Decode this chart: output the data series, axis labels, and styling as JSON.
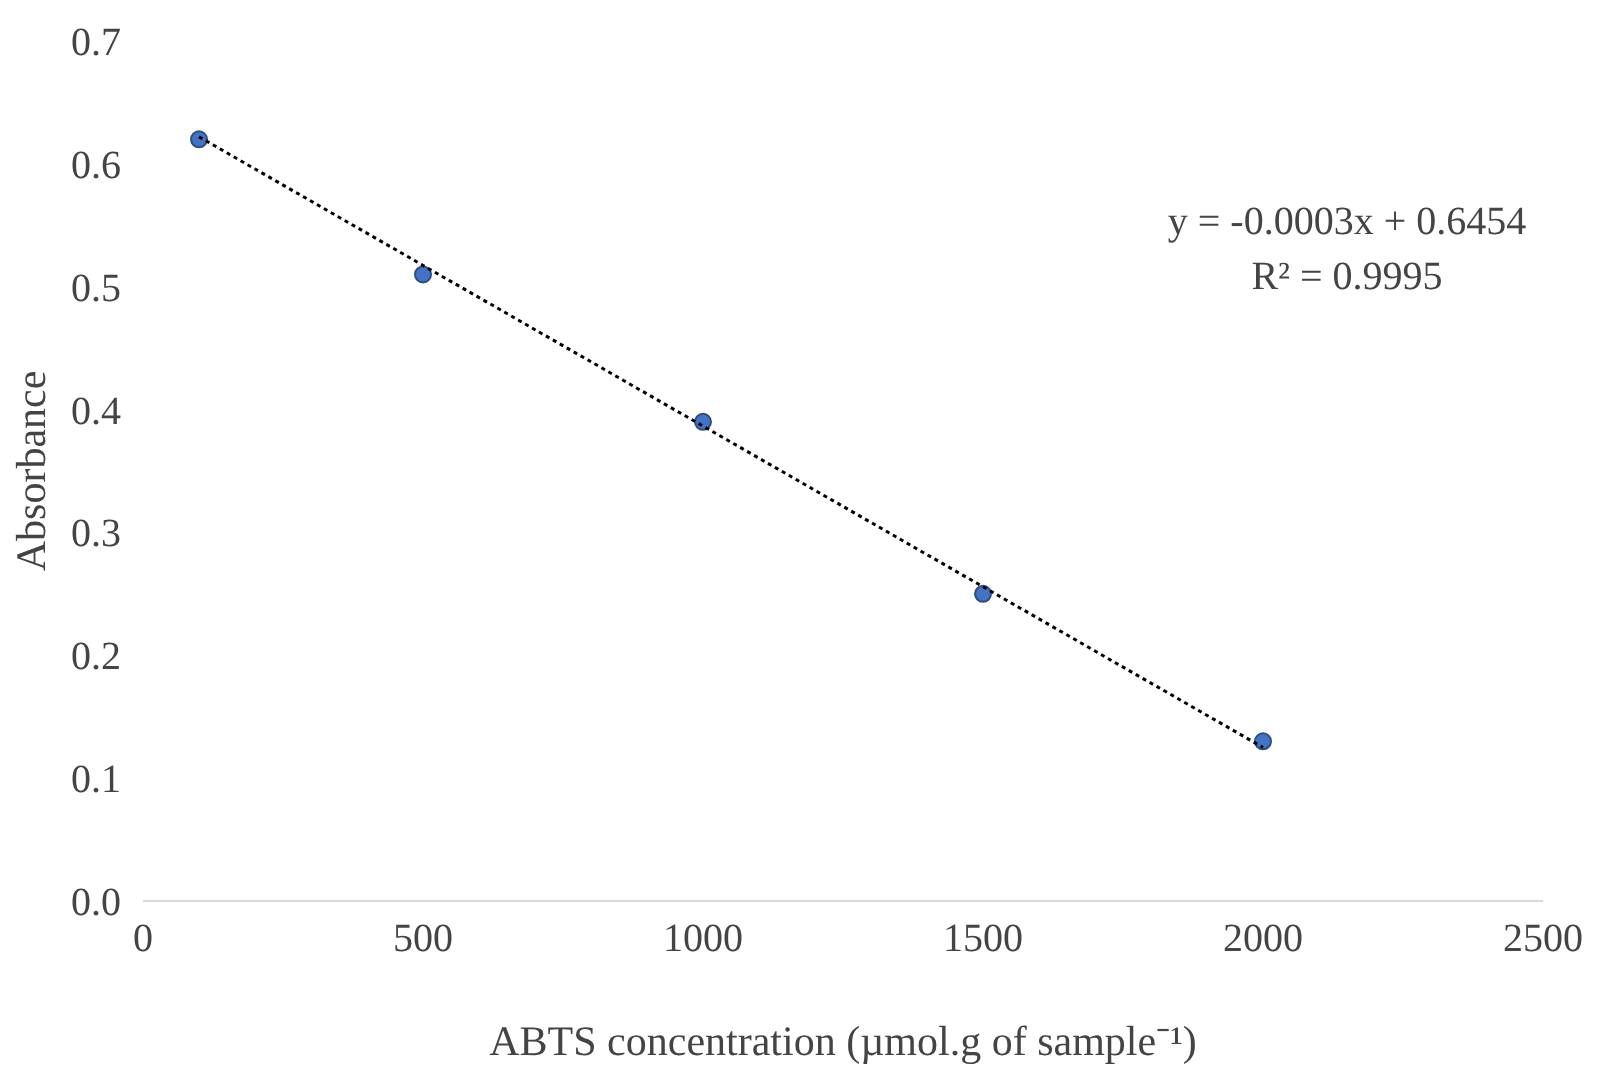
{
  "chart_data": {
    "type": "scatter",
    "xlabel": "ABTS concentration (µmol.g of sample⁻¹)",
    "ylabel": "Absorbance",
    "xlim": [
      0,
      2500
    ],
    "xticks": [
      0,
      500,
      1000,
      1500,
      2000,
      2500
    ],
    "ylim": [
      0,
      0.7
    ],
    "yticks": [
      {
        "value": 0,
        "label": "0.0"
      },
      0.1,
      0.2,
      0.3,
      0.4,
      0.5,
      0.6,
      0.7
    ],
    "grid": false,
    "series": [
      {
        "marker": "circle",
        "color": "#4472c4",
        "x": [
          100,
          500,
          1000,
          1500,
          2000
        ],
        "values": [
          0.62,
          0.51,
          0.39,
          0.25,
          0.13
        ]
      },
      {
        "type": "line",
        "color": "#000000",
        "line_style": "dotted",
        "x": [
          100,
          2000
        ],
        "values": [
          0.622,
          0.125
        ]
      }
    ],
    "annotations": [
      "y = -0.0003x + 0.6454",
      "R² = 0.9995"
    ]
  }
}
